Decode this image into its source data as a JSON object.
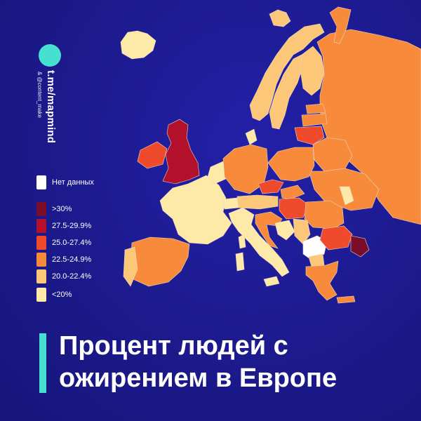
{
  "brand": {
    "handle": "t.me/mapmind",
    "sub": "& @content_make"
  },
  "legend": [
    {
      "label": "Нет данных",
      "color": "#ffffff"
    },
    {
      "label": ">30%",
      "color": "#7a0d2a"
    },
    {
      "label": "27.5-29.9%",
      "color": "#b3102b"
    },
    {
      "label": "25.0-27.4%",
      "color": "#f04a2c"
    },
    {
      "label": "22.5-24.9%",
      "color": "#f88a3c"
    },
    {
      "label": "20.0-22.4%",
      "color": "#fcc779"
    },
    {
      "label": "<20%",
      "color": "#feeaa8"
    }
  ],
  "title": {
    "line1": "Процент людей с",
    "line2": "ожирением в Европе"
  },
  "map_regions": [
    {
      "name": "iceland",
      "category": "<20%"
    },
    {
      "name": "norway",
      "category": "20.0-22.4%"
    },
    {
      "name": "sweden",
      "category": "20.0-22.4%"
    },
    {
      "name": "finland",
      "category": "20.0-22.4%"
    },
    {
      "name": "russia",
      "category": "22.5-24.9%"
    },
    {
      "name": "estonia",
      "category": "22.5-24.9%"
    },
    {
      "name": "latvia",
      "category": "22.5-24.9%"
    },
    {
      "name": "lithuania",
      "category": "25.0-27.4%"
    },
    {
      "name": "belarus",
      "category": "22.5-24.9%"
    },
    {
      "name": "ukraine",
      "category": "22.5-24.9%"
    },
    {
      "name": "moldova",
      "category": "<20%"
    },
    {
      "name": "united-kingdom",
      "category": "27.5-29.9%"
    },
    {
      "name": "ireland",
      "category": "25.0-27.4%"
    },
    {
      "name": "france",
      "category": "<20%"
    },
    {
      "name": "spain",
      "category": "22.5-24.9%"
    },
    {
      "name": "portugal",
      "category": "20.0-22.4%"
    },
    {
      "name": "benelux",
      "category": "<20%"
    },
    {
      "name": "germany",
      "category": "22.5-24.9%"
    },
    {
      "name": "denmark",
      "category": "<20%"
    },
    {
      "name": "poland",
      "category": "22.5-24.9%"
    },
    {
      "name": "czechia",
      "category": "25.0-27.4%"
    },
    {
      "name": "slovakia",
      "category": "22.5-24.9%"
    },
    {
      "name": "switzerland",
      "category": "<20%"
    },
    {
      "name": "austria",
      "category": "20.0-22.4%"
    },
    {
      "name": "hungary",
      "category": "25.0-27.4%"
    },
    {
      "name": "romania",
      "category": "22.5-24.9%"
    },
    {
      "name": "italy",
      "category": "<20%"
    },
    {
      "name": "slovenia-croatia",
      "category": "22.5-24.9%"
    },
    {
      "name": "bosnia",
      "category": "<20%"
    },
    {
      "name": "serbia",
      "category": "20.0-22.4%"
    },
    {
      "name": "kosovo-albania",
      "category": "Нет данных"
    },
    {
      "name": "bulgaria",
      "category": "25.0-27.4%"
    },
    {
      "name": "north-macedonia",
      "category": "20.0-22.4%"
    },
    {
      "name": "greece",
      "category": "22.5-24.9%"
    },
    {
      "name": "turkey-europe",
      "category": ">30%"
    },
    {
      "name": "sardinia",
      "category": "<20%"
    },
    {
      "name": "sicily",
      "category": "<20%"
    },
    {
      "name": "corsica",
      "category": "<20%"
    },
    {
      "name": "crete",
      "category": "22.5-24.9%"
    },
    {
      "name": "svalbard",
      "category": "20.0-22.4%"
    },
    {
      "name": "novaya-zemlya",
      "category": "22.5-24.9%"
    }
  ]
}
